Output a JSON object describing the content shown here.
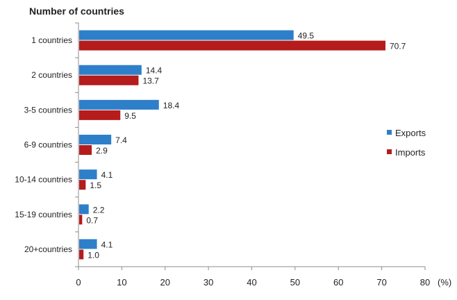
{
  "chart_data": {
    "type": "bar",
    "orientation": "horizontal",
    "ylabel": "Number of countries",
    "xlabel": "(%)",
    "categories": [
      "1 countries",
      "2 countries",
      "3-5 countries",
      "6-9 countries",
      "10-14 countries",
      "15-19 countries",
      "20+countries"
    ],
    "series": [
      {
        "name": "Exports",
        "color": "#2e7fc9",
        "values": [
          49.5,
          14.4,
          18.4,
          7.4,
          4.1,
          2.2,
          4.1
        ],
        "labels": [
          "49.5",
          "14.4",
          "18.4",
          "7.4",
          "4.1",
          "2.2",
          "4.1"
        ]
      },
      {
        "name": "Imports",
        "color": "#b51c1c",
        "values": [
          70.7,
          13.7,
          9.5,
          2.9,
          1.5,
          0.7,
          1.0
        ],
        "labels": [
          "70.7",
          "13.7",
          "9.5",
          "2.9",
          "1.5",
          "0.7",
          "1.0"
        ]
      }
    ],
    "xlim": [
      0,
      80
    ],
    "xticks": [
      "0",
      "10",
      "20",
      "30",
      "40",
      "50",
      "60",
      "70",
      "80"
    ],
    "grid": false,
    "legend_position": "right"
  }
}
